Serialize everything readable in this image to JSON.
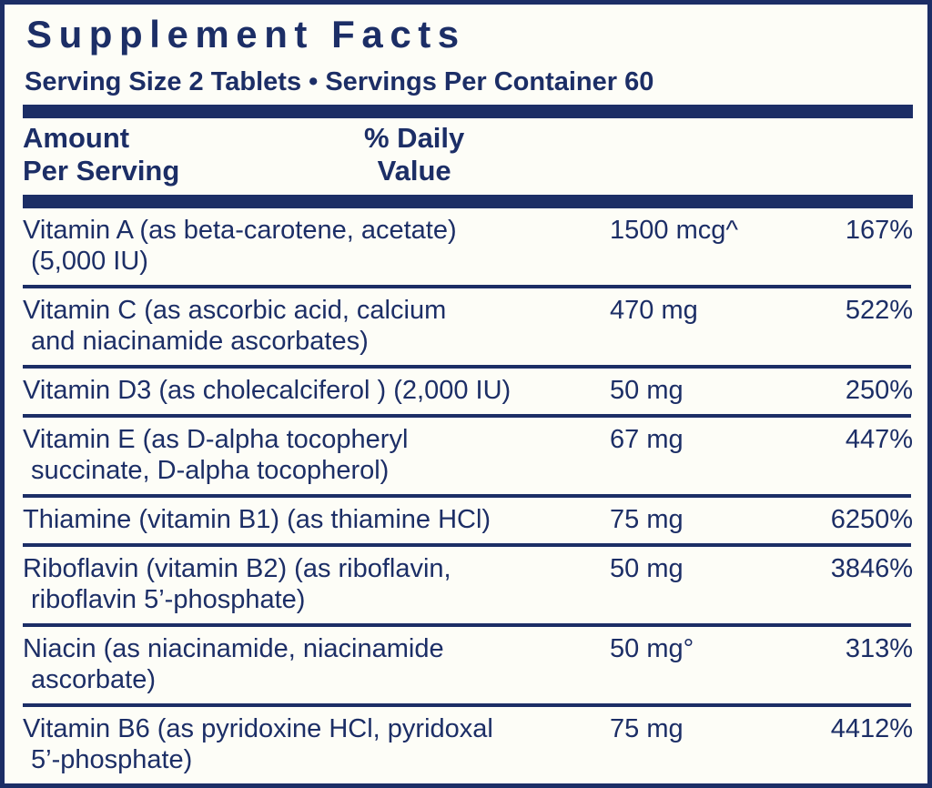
{
  "label": {
    "title": "Supplement Facts",
    "serving_line": "Serving Size 2 Tablets • Servings Per Container 60",
    "header": {
      "amount_line1": "Amount",
      "amount_line2": "Per Serving",
      "dv_line1": "% Daily",
      "dv_line2": "Value"
    },
    "colors": {
      "navy": "#1c2e66",
      "background": "#fdfdf7"
    },
    "rows": [
      {
        "name1": "Vitamin A (as beta-carotene, acetate)",
        "name2": "(5,000 IU)",
        "amount": "1500 mcg^",
        "dv": "167%"
      },
      {
        "name1": "Vitamin C (as ascorbic acid, calcium",
        "name2": "and niacinamide ascorbates)",
        "amount": "470 mg",
        "dv": "522%"
      },
      {
        "name1": "Vitamin D3 (as cholecalciferol ) (2,000 IU)",
        "name2": "",
        "amount": "50 mg",
        "dv": "250%"
      },
      {
        "name1": "Vitamin E (as D-alpha tocopheryl",
        "name2": "succinate, D-alpha tocopherol)",
        "amount": "67 mg",
        "dv": "447%"
      },
      {
        "name1": "Thiamine (vitamin B1) (as thiamine HCl)",
        "name2": "",
        "amount": "75 mg",
        "dv": "6250%"
      },
      {
        "name1": "Riboflavin (vitamin B2) (as riboflavin,",
        "name2": "riboflavin 5’-phosphate)",
        "amount": "50 mg",
        "dv": "3846%"
      },
      {
        "name1": "Niacin (as niacinamide, niacinamide",
        "name2": "ascorbate)",
        "amount": "50 mg°",
        "dv": "313%"
      },
      {
        "name1": "Vitamin B6 (as pyridoxine HCl, pyridoxal",
        "name2": "5’-phosphate)",
        "amount": "75 mg",
        "dv": "4412%"
      }
    ]
  }
}
